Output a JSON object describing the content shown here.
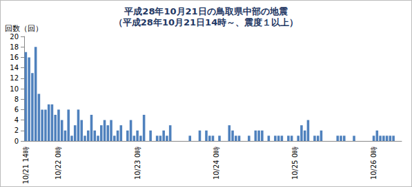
{
  "chart_data": {
    "type": "bar",
    "title": "平成28年10月21日の鳥取県中部の地震",
    "subtitle": "（平成28年10月21日14時～、震度１以上）",
    "y_label": "回数（回）",
    "categories": [
      "10/21 14時",
      null,
      null,
      null,
      null,
      null,
      null,
      null,
      null,
      null,
      "10/22 0時",
      null,
      null,
      null,
      null,
      null,
      null,
      null,
      null,
      null,
      null,
      null,
      null,
      null,
      null,
      null,
      null,
      null,
      null,
      null,
      null,
      null,
      null,
      null,
      "10/23 0時",
      null,
      null,
      null,
      null,
      null,
      null,
      null,
      null,
      null,
      null,
      null,
      null,
      null,
      null,
      null,
      null,
      null,
      null,
      null,
      null,
      null,
      null,
      null,
      "10/24 0時",
      null,
      null,
      null,
      null,
      null,
      null,
      null,
      null,
      null,
      null,
      null,
      null,
      null,
      null,
      null,
      null,
      null,
      null,
      null,
      null,
      null,
      null,
      null,
      "10/25 0時",
      null,
      null,
      null,
      null,
      null,
      null,
      null,
      null,
      null,
      null,
      null,
      null,
      null,
      null,
      null,
      null,
      null,
      null,
      null,
      null,
      null,
      null,
      null,
      "10/26 0時",
      null,
      null,
      null,
      null,
      null,
      null,
      null,
      null
    ],
    "values": [
      17,
      16,
      13,
      18,
      9,
      6,
      6,
      7,
      7,
      5,
      6,
      4,
      2,
      6,
      1,
      3,
      6,
      4,
      1,
      2,
      5,
      2,
      1,
      3,
      4,
      3,
      4,
      1,
      2,
      3,
      0,
      2,
      4,
      1,
      2,
      1,
      5,
      0,
      2,
      0,
      1,
      1,
      2,
      1,
      3,
      0,
      0,
      0,
      0,
      0,
      1,
      0,
      0,
      2,
      0,
      2,
      1,
      1,
      0,
      1,
      0,
      0,
      3,
      2,
      1,
      1,
      0,
      0,
      1,
      0,
      2,
      2,
      2,
      0,
      1,
      0,
      1,
      1,
      1,
      0,
      1,
      1,
      0,
      1,
      3,
      2,
      4,
      0,
      1,
      1,
      2,
      0,
      0,
      0,
      0,
      1,
      1,
      1,
      0,
      0,
      1,
      0,
      0,
      0,
      0,
      0,
      1,
      2,
      1,
      1,
      1,
      1,
      1,
      0,
      0
    ],
    "color": "#4f81bd",
    "ylim": [
      0,
      20
    ],
    "yticks": [
      0,
      2,
      4,
      6,
      8,
      10,
      12,
      14,
      16,
      18,
      20
    ],
    "grid": false
  }
}
